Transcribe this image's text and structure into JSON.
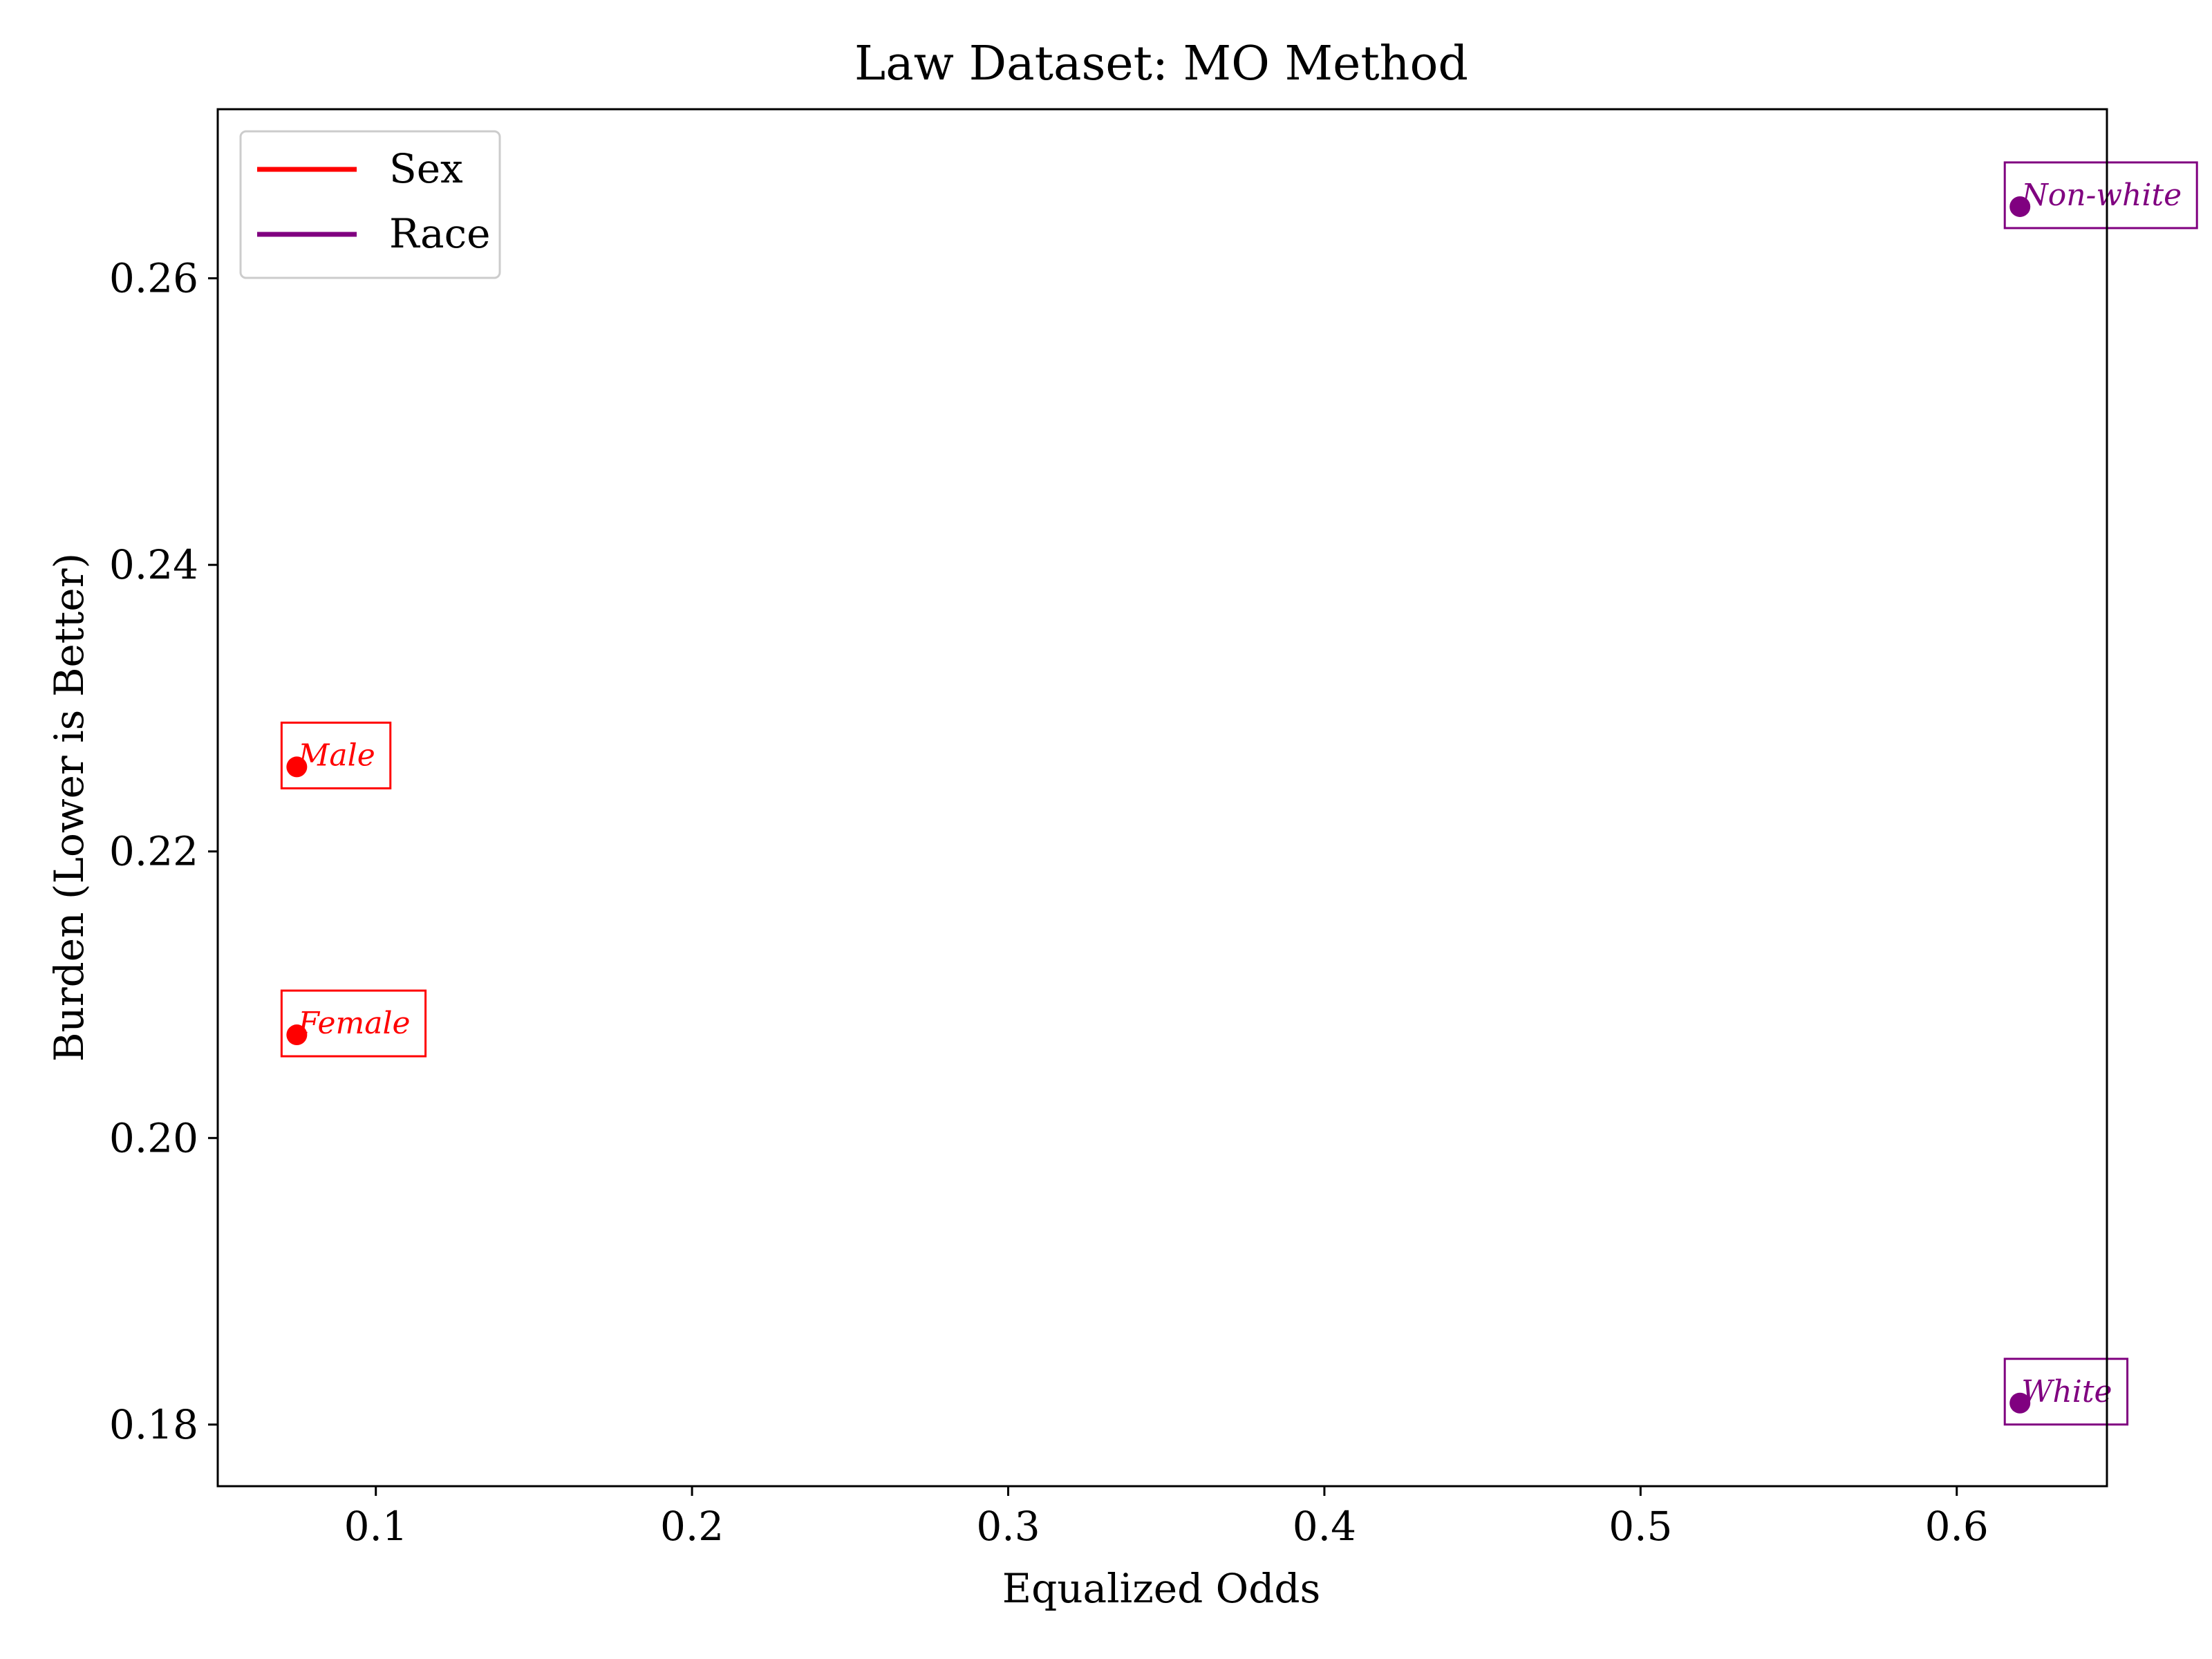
{
  "chart_data": {
    "type": "scatter",
    "title": "Law Dataset: MO Method",
    "xlabel": "Equalized Odds",
    "ylabel": "Burden (Lower is Better)",
    "xlim": [
      0.05,
      0.6475
    ],
    "ylim": [
      0.1757,
      0.2718
    ],
    "xticks": [
      0.1,
      0.2,
      0.3,
      0.4,
      0.5,
      0.6
    ],
    "xtick_labels": [
      "0.1",
      "0.2",
      "0.3",
      "0.4",
      "0.5",
      "0.6"
    ],
    "yticks": [
      0.18,
      0.2,
      0.22,
      0.24,
      0.26
    ],
    "ytick_labels": [
      "0.18",
      "0.20",
      "0.22",
      "0.24",
      "0.26"
    ],
    "grid": false,
    "legend": {
      "placement": "top-left",
      "entries": [
        {
          "label": "Sex",
          "color": "#ff0000"
        },
        {
          "label": "Race",
          "color": "#800080"
        }
      ]
    },
    "series": [
      {
        "name": "Sex",
        "color": "#ff0000",
        "points": [
          {
            "label": "Male",
            "x": 0.075,
            "y": 0.2259
          },
          {
            "label": "Female",
            "x": 0.075,
            "y": 0.2072
          }
        ]
      },
      {
        "name": "Race",
        "color": "#800080",
        "points": [
          {
            "label": "Non-white",
            "x": 0.62,
            "y": 0.265
          },
          {
            "label": "White",
            "x": 0.62,
            "y": 0.1815
          }
        ]
      }
    ]
  }
}
